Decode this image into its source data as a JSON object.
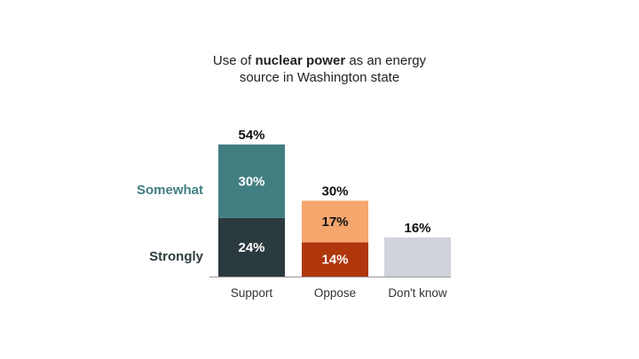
{
  "chart_data": {
    "type": "bar",
    "stacked": true,
    "title": {
      "pre": "Use of ",
      "bold": "nuclear power",
      "post": " as an energy",
      "line2": "source in Washington state"
    },
    "categories": [
      "Support",
      "Oppose",
      "Don't know"
    ],
    "series": [
      {
        "name": "Strongly",
        "values": [
          24,
          14,
          16
        ],
        "colors": [
          "#2b3a3e",
          "#b0360c",
          "#d0d3d9"
        ],
        "labels": [
          "24%",
          "14%",
          ""
        ]
      },
      {
        "name": "Somewhat",
        "values": [
          30,
          17,
          0
        ],
        "colors": [
          "#417e82",
          "#f5a66d",
          "#d0d3d9"
        ],
        "labels": [
          "30%",
          "17%",
          ""
        ]
      }
    ],
    "totals": [
      "54%",
      "30%",
      "16%"
    ],
    "legend_colors": {
      "Strongly": "#2b3a3e",
      "Somewhat": "#417e82"
    },
    "legend_placement": "left",
    "ylim": [
      0,
      54
    ],
    "grid": false
  }
}
